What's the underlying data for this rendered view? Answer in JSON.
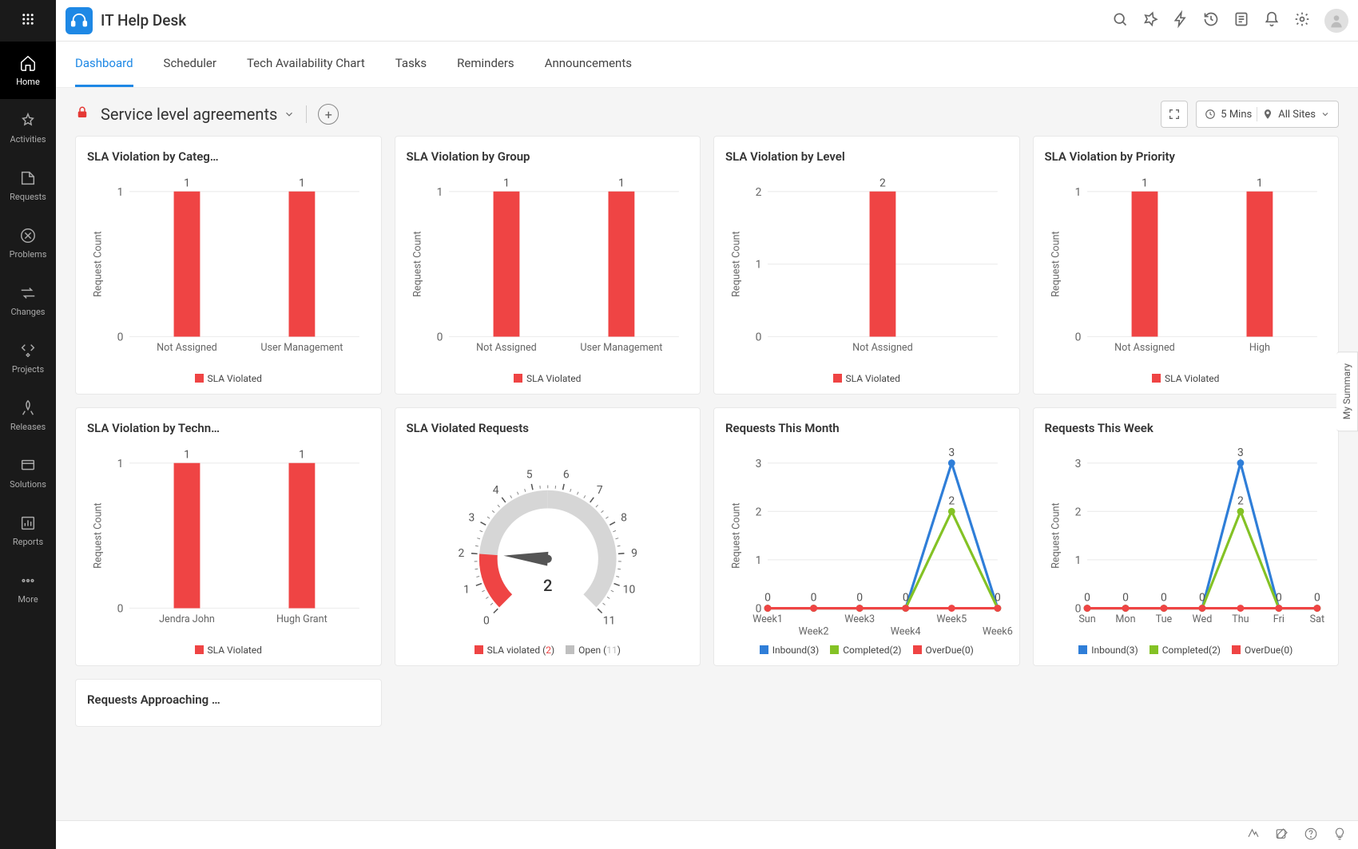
{
  "app": {
    "title": "IT Help Desk"
  },
  "sidebar": {
    "items": [
      {
        "label": "Home",
        "icon": "home",
        "active": true
      },
      {
        "label": "Activities",
        "icon": "activities"
      },
      {
        "label": "Requests",
        "icon": "requests"
      },
      {
        "label": "Problems",
        "icon": "problems"
      },
      {
        "label": "Changes",
        "icon": "changes"
      },
      {
        "label": "Projects",
        "icon": "projects"
      },
      {
        "label": "Releases",
        "icon": "releases"
      },
      {
        "label": "Solutions",
        "icon": "solutions"
      },
      {
        "label": "Reports",
        "icon": "reports"
      },
      {
        "label": "More",
        "icon": "more"
      }
    ]
  },
  "tabs": [
    {
      "label": "Dashboard",
      "active": true
    },
    {
      "label": "Scheduler"
    },
    {
      "label": "Tech Availability Chart"
    },
    {
      "label": "Tasks"
    },
    {
      "label": "Reminders"
    },
    {
      "label": "Announcements"
    }
  ],
  "page": {
    "title": "Service level agreements",
    "refresh_label": "5 Mins",
    "sites_label": "All Sites"
  },
  "summary_tab": "My Summary",
  "colors": {
    "red": "#ef4444",
    "blue": "#2f7ed8",
    "green": "#84c225",
    "grey": "#bfbfbf",
    "grid": "#eeeeee",
    "axis": "#cccccc"
  },
  "cards": [
    {
      "title": "SLA Violation by Categ…",
      "type": "bar",
      "y_label": "Request Count",
      "y_max": 1,
      "y_ticks": [
        0,
        1
      ],
      "categories": [
        "Not Assigned",
        "User Management"
      ],
      "values": [
        1,
        1
      ],
      "bar_color": "#ef4444",
      "legend": [
        {
          "label": "SLA Violated",
          "color": "#ef4444"
        }
      ]
    },
    {
      "title": "SLA Violation by Group",
      "type": "bar",
      "y_label": "Request Count",
      "y_max": 1,
      "y_ticks": [
        0,
        1
      ],
      "categories": [
        "Not Assigned",
        "User Management"
      ],
      "values": [
        1,
        1
      ],
      "bar_color": "#ef4444",
      "legend": [
        {
          "label": "SLA Violated",
          "color": "#ef4444"
        }
      ]
    },
    {
      "title": "SLA Violation by Level",
      "type": "bar",
      "y_label": "Request Count",
      "y_max": 2,
      "y_ticks": [
        0,
        1,
        2
      ],
      "categories": [
        "Not Assigned"
      ],
      "values": [
        2
      ],
      "bar_color": "#ef4444",
      "legend": [
        {
          "label": "SLA Violated",
          "color": "#ef4444"
        }
      ]
    },
    {
      "title": "SLA Violation by Priority",
      "type": "bar",
      "y_label": "Request Count",
      "y_max": 1,
      "y_ticks": [
        0,
        1
      ],
      "categories": [
        "Not Assigned",
        "High"
      ],
      "values": [
        1,
        1
      ],
      "bar_color": "#ef4444",
      "legend": [
        {
          "label": "SLA Violated",
          "color": "#ef4444"
        }
      ]
    },
    {
      "title": "SLA Violation by Techn…",
      "type": "bar",
      "y_label": "Request Count",
      "y_max": 1,
      "y_ticks": [
        0,
        1
      ],
      "categories": [
        "Jendra John",
        "Hugh Grant"
      ],
      "values": [
        1,
        1
      ],
      "bar_color": "#ef4444",
      "legend": [
        {
          "label": "SLA Violated",
          "color": "#ef4444"
        }
      ]
    },
    {
      "title": "SLA Violated Requests",
      "type": "gauge",
      "min": 0,
      "max": 11,
      "value": 2,
      "ticks": [
        0,
        1,
        2,
        3,
        4,
        5,
        6,
        7,
        8,
        9,
        10,
        11
      ],
      "fill_color": "#ef4444",
      "track_color": "#d6d6d6",
      "legend": [
        {
          "label": "SLA violated (",
          "value": "2",
          "suffix": ")",
          "color": "#ef4444"
        },
        {
          "label": "Open (",
          "value": "11",
          "suffix": ")",
          "color": "#bfbfbf"
        }
      ]
    },
    {
      "title": "Requests This Month",
      "type": "line",
      "y_label": "Request Count",
      "y_max": 3,
      "y_ticks": [
        0,
        1,
        2,
        3
      ],
      "categories": [
        "Week1",
        "Week2",
        "Week3",
        "Week4",
        "Week5",
        "Week6"
      ],
      "cat_stagger": true,
      "series": [
        {
          "name": "Inbound(3)",
          "color": "#2f7ed8",
          "values": [
            0,
            0,
            0,
            0,
            3,
            0
          ],
          "marker": true
        },
        {
          "name": "Completed(2)",
          "color": "#84c225",
          "values": [
            0,
            0,
            0,
            0,
            2,
            0
          ],
          "marker": true
        },
        {
          "name": "OverDue(0)",
          "color": "#ef4444",
          "values": [
            0,
            0,
            0,
            0,
            0,
            0
          ],
          "marker": true
        }
      ],
      "legend": [
        {
          "label": "Inbound(3)",
          "color": "#2f7ed8"
        },
        {
          "label": "Completed(2)",
          "color": "#84c225"
        },
        {
          "label": "OverDue(0)",
          "color": "#ef4444"
        }
      ]
    },
    {
      "title": "Requests This Week",
      "type": "line",
      "y_label": "Request Count",
      "y_max": 3,
      "y_ticks": [
        0,
        1,
        2,
        3
      ],
      "categories": [
        "Sun",
        "Mon",
        "Tue",
        "Wed",
        "Thu",
        "Fri",
        "Sat"
      ],
      "cat_stagger": false,
      "series": [
        {
          "name": "Inbound(3)",
          "color": "#2f7ed8",
          "values": [
            0,
            0,
            0,
            0,
            3,
            0,
            0
          ],
          "marker": true
        },
        {
          "name": "Completed(2)",
          "color": "#84c225",
          "values": [
            0,
            0,
            0,
            0,
            2,
            0,
            0
          ],
          "marker": true
        },
        {
          "name": "OverDue(0)",
          "color": "#ef4444",
          "values": [
            0,
            0,
            0,
            0,
            0,
            0,
            0
          ],
          "marker": true
        }
      ],
      "legend": [
        {
          "label": "Inbound(3)",
          "color": "#2f7ed8"
        },
        {
          "label": "Completed(2)",
          "color": "#84c225"
        },
        {
          "label": "OverDue(0)",
          "color": "#ef4444"
        }
      ]
    },
    {
      "title": "Requests Approaching …",
      "type": "empty"
    }
  ]
}
